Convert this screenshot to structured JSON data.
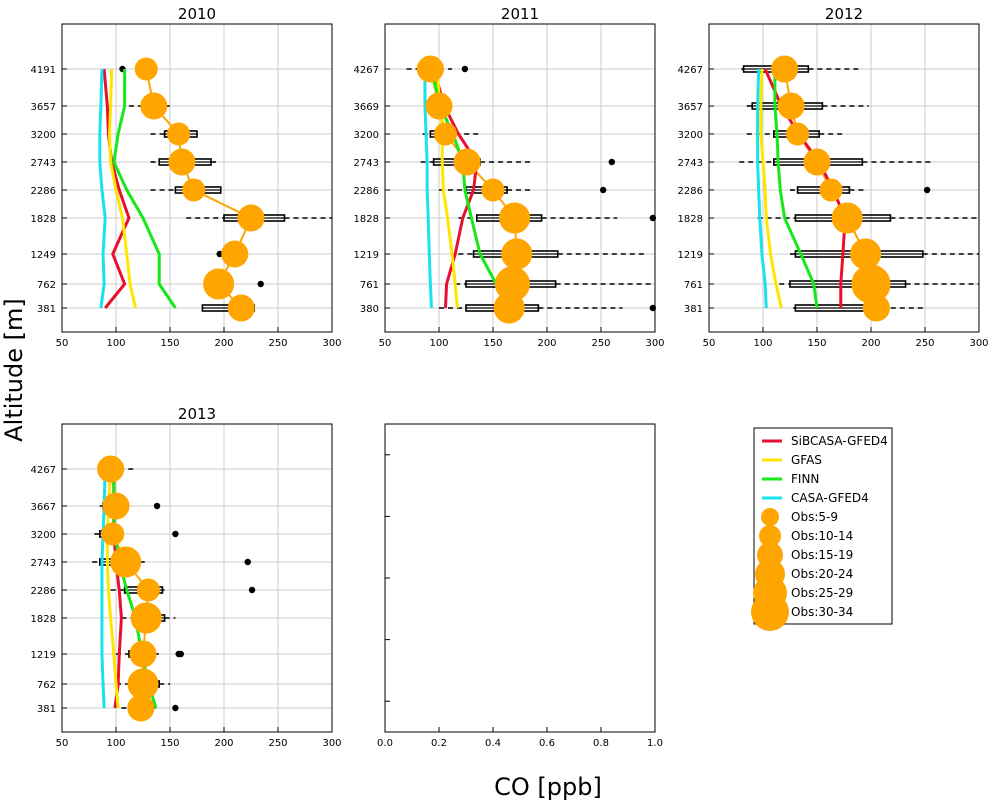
{
  "figure": {
    "ylabel": "Altitude [m]",
    "xlabel": "CO [ppb]"
  },
  "chart_data": {
    "type": "line",
    "xlim": [
      50,
      300
    ],
    "xticks": [
      "50",
      "100",
      "150",
      "200",
      "250",
      "300"
    ],
    "grid": true,
    "legend_position": "right, below top row",
    "series_styles": [
      {
        "name": "SiBCASA-GFED4",
        "color": "#e8102e"
      },
      {
        "name": "GFAS",
        "color": "#ffe600"
      },
      {
        "name": "FINN",
        "color": "#17e817"
      },
      {
        "name": "CASA-GFED4",
        "color": "#17e2ee"
      }
    ],
    "obs_color": "#ffa500",
    "obs_legend": [
      "Obs:5-9",
      "Obs:10-14",
      "Obs:15-19",
      "Obs:20-24",
      "Obs:25-29",
      "Obs:30-34"
    ],
    "empty_panel": {
      "xlim": [
        0,
        1
      ],
      "xticks": [
        "0.0",
        "0.2",
        "0.4",
        "0.6",
        "0.8",
        "1.0"
      ]
    },
    "panels": [
      {
        "title": "2010",
        "ylevels": [
          "381",
          "762",
          "1249",
          "1828",
          "2286",
          "2743",
          "3200",
          "3657",
          "4191"
        ],
        "models": {
          "SiBCASA-GFED4": [
            90,
            108,
            97,
            112,
            103,
            96,
            93,
            92,
            89
          ],
          "GFAS": [
            118,
            113,
            110,
            106,
            100,
            95,
            94,
            95,
            96
          ],
          "FINN": [
            155,
            140,
            140,
            125,
            110,
            98,
            102,
            108,
            108
          ],
          "CASA-GFED4": [
            86,
            89,
            88,
            90,
            87,
            85,
            85,
            86,
            87
          ]
        },
        "obs": [
          {
            "mean": 216,
            "size": 2,
            "q1": 180,
            "q3": 228,
            "wmin": 180,
            "wmax": 228
          },
          {
            "mean": 195,
            "size": 3,
            "q1": 182,
            "q3": 200,
            "wmin": 182,
            "wmax": 205,
            "outliers": [
              234
            ]
          },
          {
            "mean": 210,
            "size": 2,
            "q1": 206,
            "q3": 215,
            "wmin": 206,
            "wmax": 215,
            "outliers": [
              196
            ]
          },
          {
            "mean": 225,
            "size": 2,
            "q1": 200,
            "q3": 256,
            "wmin": 165,
            "wmax": 300
          },
          {
            "mean": 172,
            "size": 1,
            "q1": 155,
            "q3": 197,
            "wmin": 132,
            "wmax": 197
          },
          {
            "mean": 161,
            "size": 2,
            "q1": 140,
            "q3": 188,
            "wmin": 132,
            "wmax": 195
          },
          {
            "mean": 158,
            "size": 1,
            "q1": 145,
            "q3": 175,
            "wmin": 132,
            "wmax": 175
          },
          {
            "mean": 135,
            "size": 2,
            "q1": 125,
            "q3": 145,
            "wmin": 112,
            "wmax": 150
          },
          {
            "mean": 128,
            "size": 1,
            "q1": 124,
            "q3": 137,
            "wmin": 124,
            "wmax": 137,
            "outliers": [
              106
            ]
          }
        ]
      },
      {
        "title": "2011",
        "ylevels": [
          "380",
          "761",
          "1219",
          "1828",
          "2286",
          "2743",
          "3200",
          "3669",
          "4267"
        ],
        "models": {
          "SiBCASA-GFED4": [
            106,
            107,
            115,
            122,
            132,
            135,
            118,
            105,
            95
          ],
          "GFAS": [
            117,
            115,
            112,
            108,
            104,
            103,
            103,
            101,
            98
          ],
          "FINN": [
            163,
            153,
            138,
            130,
            124,
            122,
            113,
            101,
            93
          ],
          "CASA-GFED4": [
            93,
            92,
            91,
            90,
            89,
            89,
            88,
            87,
            87
          ]
        },
        "obs": [
          {
            "mean": 165,
            "size": 3,
            "q1": 125,
            "q3": 192,
            "wmin": 100,
            "wmax": 270,
            "outliers": [
              298
            ]
          },
          {
            "mean": 168,
            "size": 4,
            "q1": 125,
            "q3": 208,
            "wmin": 115,
            "wmax": 300
          },
          {
            "mean": 172,
            "size": 3,
            "q1": 132,
            "q3": 210,
            "wmin": 118,
            "wmax": 290
          },
          {
            "mean": 170,
            "size": 3,
            "q1": 135,
            "q3": 195,
            "wmin": 118,
            "wmax": 265,
            "outliers": [
              298
            ]
          },
          {
            "mean": 150,
            "size": 1,
            "q1": 125,
            "q3": 163,
            "wmin": 100,
            "wmax": 185,
            "outliers": [
              252
            ]
          },
          {
            "mean": 126,
            "size": 2,
            "q1": 95,
            "q3": 138,
            "wmin": 83,
            "wmax": 185,
            "outliers": [
              260
            ]
          },
          {
            "mean": 106,
            "size": 1,
            "q1": 92,
            "q3": 115,
            "wmin": 85,
            "wmax": 140
          },
          {
            "mean": 100,
            "size": 2,
            "q1": 90,
            "q3": 110,
            "wmin": 88,
            "wmax": 110
          },
          {
            "mean": 92,
            "size": 2,
            "q1": 85,
            "q3": 100,
            "wmin": 70,
            "wmax": 112,
            "outliers": [
              124
            ]
          }
        ]
      },
      {
        "title": "2012",
        "ylevels": [
          "381",
          "761",
          "1219",
          "1828",
          "2286",
          "2743",
          "3200",
          "3657",
          "4267"
        ],
        "models": {
          "SiBCASA-GFED4": [
            172,
            172,
            174,
            176,
            165,
            152,
            133,
            117,
            102
          ],
          "GFAS": [
            117,
            112,
            107,
            103,
            102,
            100,
            98,
            98,
            99
          ],
          "FINN": [
            150,
            147,
            135,
            120,
            116,
            114,
            113,
            111,
            111
          ],
          "CASA-GFED4": [
            103,
            102,
            99,
            97,
            96,
            95,
            95,
            95,
            96
          ]
        },
        "obs": [
          {
            "mean": 205,
            "size": 2,
            "q1": 130,
            "q3": 210,
            "wmin": 128,
            "wmax": 250
          },
          {
            "mean": 200,
            "size": 5,
            "q1": 125,
            "q3": 232,
            "wmin": 115,
            "wmax": 300
          },
          {
            "mean": 195,
            "size": 3,
            "q1": 130,
            "q3": 248,
            "wmin": 125,
            "wmax": 300
          },
          {
            "mean": 178,
            "size": 3,
            "q1": 130,
            "q3": 218,
            "wmin": 95,
            "wmax": 300
          },
          {
            "mean": 163,
            "size": 1,
            "q1": 132,
            "q3": 180,
            "wmin": 125,
            "wmax": 195,
            "outliers": [
              252
            ]
          },
          {
            "mean": 150,
            "size": 2,
            "q1": 110,
            "q3": 192,
            "wmin": 78,
            "wmax": 258
          },
          {
            "mean": 132,
            "size": 1,
            "q1": 110,
            "q3": 152,
            "wmin": 85,
            "wmax": 175
          },
          {
            "mean": 126,
            "size": 2,
            "q1": 90,
            "q3": 155,
            "wmin": 85,
            "wmax": 198
          },
          {
            "mean": 120,
            "size": 2,
            "q1": 82,
            "q3": 142,
            "wmin": 80,
            "wmax": 192
          }
        ]
      },
      {
        "title": "2013",
        "ylevels": [
          "381",
          "762",
          "1219",
          "1828",
          "2286",
          "2743",
          "3200",
          "3667",
          "4267"
        ],
        "models": {
          "SiBCASA-GFED4": [
            99,
            102,
            103,
            105,
            103,
            100,
            98,
            98,
            98
          ],
          "GFAS": [
            102,
            100,
            98,
            95,
            93,
            92,
            92,
            93,
            95
          ],
          "FINN": [
            137,
            130,
            124,
            118,
            110,
            103,
            99,
            98,
            98
          ],
          "CASA-GFED4": [
            89,
            88,
            87,
            87,
            87,
            87,
            88,
            89,
            90
          ]
        },
        "obs": [
          {
            "mean": 123,
            "size": 2,
            "q1": 112,
            "q3": 132,
            "wmin": 105,
            "wmax": 138,
            "outliers": [
              155
            ]
          },
          {
            "mean": 125,
            "size": 3,
            "q1": 112,
            "q3": 140,
            "wmin": 100,
            "wmax": 150
          },
          {
            "mean": 125,
            "size": 2,
            "q1": 112,
            "q3": 135,
            "wmin": 100,
            "wmax": 142,
            "outliers": [
              158,
              160
            ]
          },
          {
            "mean": 128,
            "size": 3,
            "q1": 115,
            "q3": 145,
            "wmin": 105,
            "wmax": 155
          },
          {
            "mean": 130,
            "size": 1,
            "q1": 108,
            "q3": 143,
            "wmin": 95,
            "wmax": 145,
            "outliers": [
              226
            ]
          },
          {
            "mean": 109,
            "size": 3,
            "q1": 85,
            "q3": 122,
            "wmin": 78,
            "wmax": 130,
            "outliers": [
              222
            ]
          },
          {
            "mean": 97,
            "size": 1,
            "q1": 85,
            "q3": 105,
            "wmin": 80,
            "wmax": 107,
            "outliers": [
              155
            ]
          },
          {
            "mean": 100,
            "size": 2,
            "q1": 88,
            "q3": 108,
            "wmin": 85,
            "wmax": 112,
            "outliers": [
              138
            ]
          },
          {
            "mean": 95,
            "size": 2,
            "q1": 88,
            "q3": 103,
            "wmin": 85,
            "wmax": 118
          }
        ]
      }
    ]
  }
}
